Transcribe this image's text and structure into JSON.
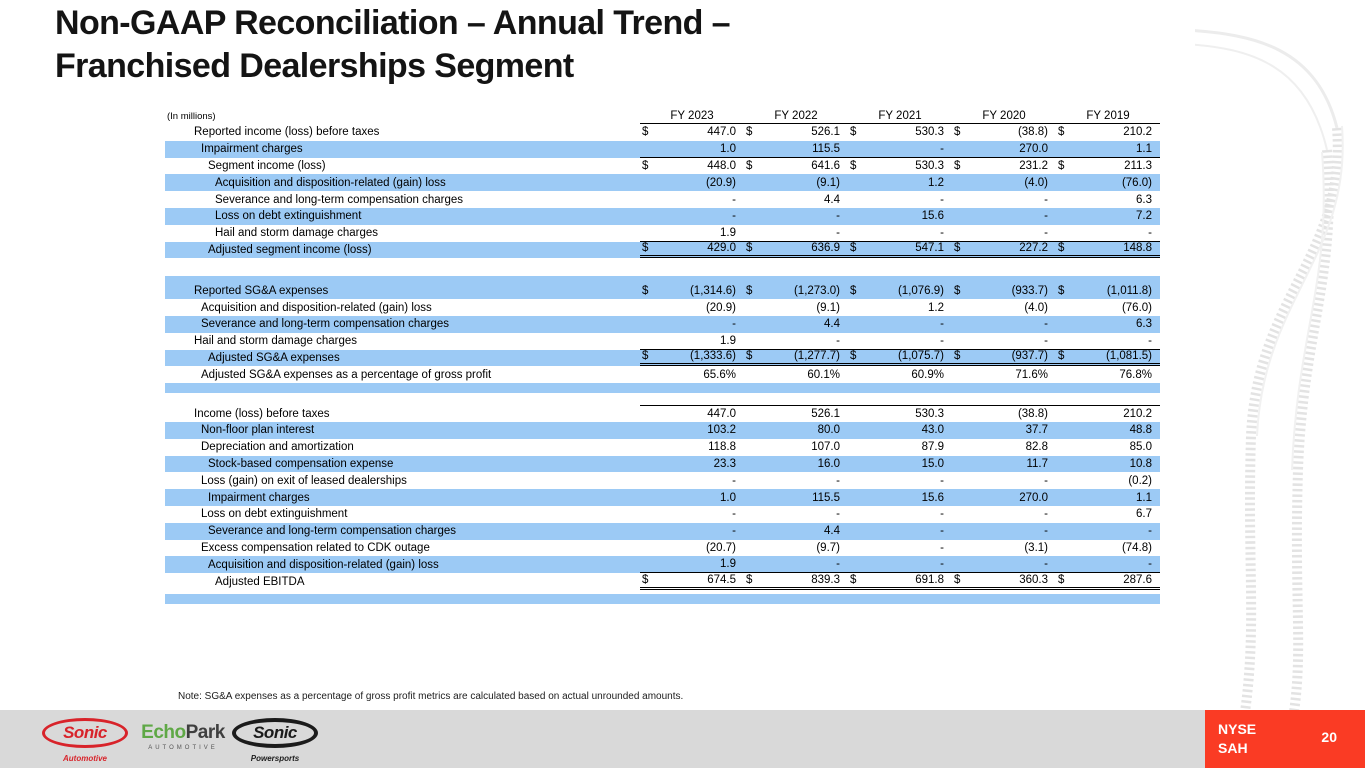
{
  "slide": {
    "title_line1": "Non-GAAP Reconciliation – Annual Trend –",
    "title_line2": "Franchised Dealerships Segment",
    "note": "Note: SG&A expenses as a percentage of gross profit metrics are calculated based on actual unrounded amounts."
  },
  "colors": {
    "highlight_blue": "#9CCAF5",
    "accent_red": "#FA3B24",
    "sonic_red": "#D8232A",
    "echo_green": "#5FA846",
    "footer_gray": "#D9D9D9"
  },
  "table": {
    "type": "table",
    "unit_label": "(In millions)",
    "columns": [
      "FY 2023",
      "FY 2022",
      "FY 2021",
      "FY 2020",
      "FY 2019"
    ],
    "rows": [
      {
        "label": "Reported income (loss) before taxes",
        "indent": 0,
        "shaded": false,
        "dollar": true,
        "border": "",
        "values": [
          "447.0",
          "526.1",
          "530.3",
          "(38.8)",
          "210.2"
        ]
      },
      {
        "label": "Impairment charges",
        "indent": 1,
        "shaded": true,
        "dollar": false,
        "border": "bottom",
        "values": [
          "1.0",
          "115.5",
          "-",
          "270.0",
          "1.1"
        ]
      },
      {
        "label": "Segment income (loss)",
        "indent": 2,
        "shaded": false,
        "dollar": true,
        "border": "",
        "values": [
          "448.0",
          "641.6",
          "530.3",
          "231.2",
          "211.3"
        ]
      },
      {
        "label": "Acquisition and disposition-related (gain) loss",
        "indent": 3,
        "shaded": true,
        "dollar": false,
        "border": "",
        "values": [
          "(20.9)",
          "(9.1)",
          "1.2",
          "(4.0)",
          "(76.0)"
        ]
      },
      {
        "label": "Severance and long-term compensation charges",
        "indent": 3,
        "shaded": false,
        "dollar": false,
        "border": "",
        "values": [
          "-",
          "4.4",
          "-",
          "-",
          "6.3"
        ]
      },
      {
        "label": "Loss on debt extinguishment",
        "indent": 3,
        "shaded": true,
        "dollar": false,
        "border": "",
        "values": [
          "-",
          "-",
          "15.6",
          "-",
          "7.2"
        ]
      },
      {
        "label": "Hail and storm damage charges",
        "indent": 3,
        "shaded": false,
        "dollar": false,
        "border": "bottom",
        "values": [
          "1.9",
          "-",
          "-",
          "-",
          "-"
        ]
      },
      {
        "label": "Adjusted segment income (loss)",
        "indent": 2,
        "shaded": true,
        "dollar": true,
        "border": "double",
        "values": [
          "429.0",
          "636.9",
          "547.1",
          "227.2",
          "148.8"
        ]
      },
      {
        "type": "spacer",
        "height": 18,
        "shaded": false
      },
      {
        "type": "spacer",
        "height": 6,
        "shaded": true
      },
      {
        "label": "Reported SG&A expenses",
        "indent": 0,
        "shaded": true,
        "dollar": true,
        "border": "",
        "values": [
          "(1,314.6)",
          "(1,273.0)",
          "(1,076.9)",
          "(933.7)",
          "(1,011.8)"
        ]
      },
      {
        "label": "Acquisition and disposition-related (gain) loss",
        "indent": 1,
        "shaded": false,
        "dollar": false,
        "border": "",
        "values": [
          "(20.9)",
          "(9.1)",
          "1.2",
          "(4.0)",
          "(76.0)"
        ]
      },
      {
        "label": "Severance and long-term compensation charges",
        "indent": 1,
        "shaded": true,
        "dollar": false,
        "border": "",
        "values": [
          "-",
          "4.4",
          "-",
          "-",
          "6.3"
        ]
      },
      {
        "label": "Hail and storm damage charges",
        "indent": 0,
        "shaded": false,
        "dollar": false,
        "border": "bottom",
        "values": [
          "1.9",
          "-",
          "-",
          "-",
          "-"
        ]
      },
      {
        "label": "Adjusted SG&A expenses",
        "indent": 2,
        "shaded": true,
        "dollar": true,
        "border": "double",
        "values": [
          "(1,333.6)",
          "(1,277.7)",
          "(1,075.7)",
          "(937.7)",
          "(1,081.5)"
        ]
      },
      {
        "label": "Adjusted SG&A expenses as a percentage of gross profit",
        "indent": 1,
        "shaded": false,
        "dollar": false,
        "border": "",
        "values": [
          "65.6%",
          "60.1%",
          "60.9%",
          "71.6%",
          "76.8%"
        ]
      },
      {
        "type": "spacer",
        "height": 10,
        "shaded": true
      },
      {
        "type": "spacer",
        "height": 12,
        "shaded": false
      },
      {
        "label": "Income (loss) before taxes",
        "indent": 0,
        "shaded": false,
        "dollar": false,
        "border": "top",
        "values": [
          "447.0",
          "526.1",
          "530.3",
          "(38.8)",
          "210.2"
        ]
      },
      {
        "label": "Non-floor plan interest",
        "indent": 1,
        "shaded": true,
        "dollar": false,
        "border": "",
        "values": [
          "103.2",
          "80.0",
          "43.0",
          "37.7",
          "48.8"
        ]
      },
      {
        "label": "Depreciation and amortization",
        "indent": 1,
        "shaded": false,
        "dollar": false,
        "border": "",
        "values": [
          "118.8",
          "107.0",
          "87.9",
          "82.8",
          "85.0"
        ]
      },
      {
        "label": "Stock-based compensation expense",
        "indent": 2,
        "shaded": true,
        "dollar": false,
        "border": "",
        "values": [
          "23.3",
          "16.0",
          "15.0",
          "11.7",
          "10.8"
        ]
      },
      {
        "label": "Loss (gain) on exit of leased dealerships",
        "indent": 1,
        "shaded": false,
        "dollar": false,
        "border": "",
        "values": [
          "-",
          "-",
          "-",
          "-",
          "(0.2)"
        ]
      },
      {
        "label": "Impairment charges",
        "indent": 2,
        "shaded": true,
        "dollar": false,
        "border": "",
        "values": [
          "1.0",
          "115.5",
          "15.6",
          "270.0",
          "1.1"
        ]
      },
      {
        "label": "Loss on debt extinguishment",
        "indent": 1,
        "shaded": false,
        "dollar": false,
        "border": "",
        "values": [
          "-",
          "-",
          "-",
          "-",
          "6.7"
        ]
      },
      {
        "label": "Severance and long-term compensation charges",
        "indent": 2,
        "shaded": true,
        "dollar": false,
        "border": "",
        "values": [
          "-",
          "4.4",
          "-",
          "-",
          "-"
        ]
      },
      {
        "label": "Excess compensation related to CDK outage",
        "indent": 1,
        "shaded": false,
        "dollar": false,
        "border": "",
        "values": [
          "(20.7)",
          "(9.7)",
          "-",
          "(3.1)",
          "(74.8)"
        ]
      },
      {
        "label": "Acquisition and disposition-related (gain) loss",
        "indent": 2,
        "shaded": true,
        "dollar": false,
        "border": "bottom",
        "values": [
          "1.9",
          "-",
          "-",
          "-",
          "-"
        ]
      },
      {
        "label": "Adjusted EBITDA",
        "indent": 3,
        "shaded": false,
        "dollar": true,
        "border": "double",
        "values": [
          "674.5",
          "839.3",
          "691.8",
          "360.3",
          "287.6"
        ]
      },
      {
        "type": "spacer",
        "height": 4,
        "shaded": false
      },
      {
        "type": "spacer",
        "height": 10,
        "shaded": true
      }
    ]
  },
  "footer": {
    "logos": {
      "sonic_automotive": {
        "line1": "Sonic",
        "line2": "Automotive"
      },
      "echopark": {
        "part1": "Echo",
        "part2": "Park",
        "sub": "AUTOMOTIVE"
      },
      "sonic_powersports": {
        "line1": "Sonic",
        "line2": "Powersports"
      }
    },
    "ticker": {
      "exchange": "NYSE",
      "symbol": "SAH"
    },
    "page": "20"
  }
}
